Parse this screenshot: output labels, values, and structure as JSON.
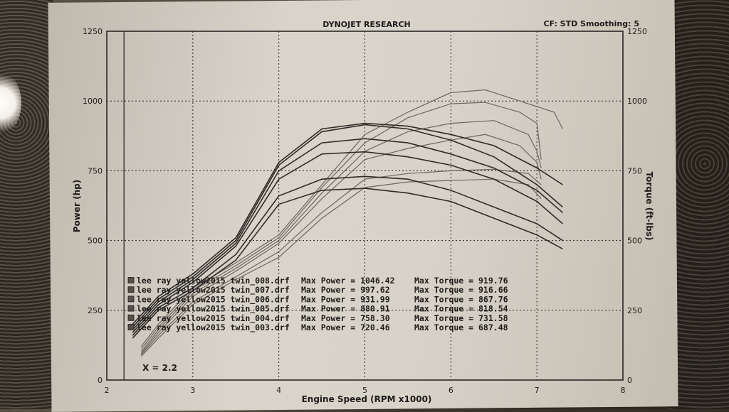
{
  "chart_data": {
    "type": "line",
    "title": "DYNOJET RESEARCH",
    "info": "CF: STD  Smoothing: 5",
    "xlabel": "Engine Speed (RPM x1000)",
    "ylabel_left": "Power (hp)",
    "ylabel_right": "Torque (ft-lbs)",
    "xlim": [
      2,
      8
    ],
    "ylim": [
      0,
      1250
    ],
    "x_ticks": [
      "2",
      "3",
      "4",
      "5",
      "6",
      "7",
      "8"
    ],
    "y_ticks_left": [
      "0",
      "250",
      "500",
      "750",
      "1000",
      "1250"
    ],
    "y_ticks_right": [
      "0",
      "250",
      "500",
      "750",
      "1000",
      "1250"
    ],
    "grid": true,
    "annotation": "X = 2.2",
    "legend": [
      {
        "name": "lee ray yellow2015 twin_008.drf",
        "power_label": "Max Power = 1046.42",
        "torque_label": "Max Torque = 919.76"
      },
      {
        "name": "lee ray yellow2015 twin_007.drf",
        "power_label": "Max Power = 997.62",
        "torque_label": "Max Torque = 916.66"
      },
      {
        "name": "lee ray yellow2015 twin_006.drf",
        "power_label": "Max Power = 931.99",
        "torque_label": "Max Torque = 867.76"
      },
      {
        "name": "lee ray yellow2015 twin_005.drf",
        "power_label": "Max Power = 880.91",
        "torque_label": "Max Torque = 818.54"
      },
      {
        "name": "lee ray yellow2015 twin_004.drf",
        "power_label": "Max Power = 758.30",
        "torque_label": "Max Torque = 731.58"
      },
      {
        "name": "lee ray yellow2015 twin_003.drf",
        "power_label": "Max Power = 720.46",
        "torque_label": "Max Torque = 687.48"
      }
    ],
    "series": [
      {
        "name": "twin_008 power",
        "kind": "power",
        "x": [
          2.4,
          2.6,
          3.0,
          3.5,
          4.0,
          4.5,
          5.0,
          5.5,
          6.0,
          6.4,
          6.8,
          7.0,
          7.2,
          7.3
        ],
        "y": [
          120,
          200,
          330,
          420,
          520,
          700,
          880,
          960,
          1030,
          1040,
          1000,
          980,
          960,
          900
        ]
      },
      {
        "name": "twin_007 power",
        "kind": "power",
        "x": [
          2.4,
          2.6,
          3.0,
          3.5,
          4.0,
          4.5,
          5.0,
          5.5,
          6.0,
          6.4,
          6.8,
          7.0,
          7.05
        ],
        "y": [
          110,
          190,
          320,
          410,
          510,
          690,
          850,
          940,
          990,
          995,
          960,
          920,
          790
        ]
      },
      {
        "name": "twin_006 power",
        "kind": "power",
        "x": [
          2.4,
          2.6,
          3.0,
          3.5,
          4.0,
          4.5,
          5.0,
          5.5,
          6.0,
          6.5,
          6.9,
          7.0,
          7.05
        ],
        "y": [
          100,
          180,
          310,
          400,
          500,
          670,
          820,
          890,
          920,
          930,
          880,
          820,
          760
        ]
      },
      {
        "name": "twin_005 power",
        "kind": "power",
        "x": [
          2.4,
          2.6,
          3.0,
          3.5,
          4.0,
          4.5,
          5.0,
          5.5,
          6.0,
          6.4,
          6.8,
          7.0,
          7.05
        ],
        "y": [
          95,
          170,
          300,
          390,
          490,
          650,
          790,
          830,
          860,
          880,
          840,
          780,
          720
        ]
      },
      {
        "name": "twin_004 power",
        "kind": "power",
        "x": [
          2.4,
          2.6,
          3.0,
          3.5,
          4.0,
          4.5,
          5.0,
          5.5,
          6.0,
          6.5,
          6.9,
          7.05
        ],
        "y": [
          90,
          160,
          280,
          370,
          460,
          600,
          720,
          740,
          750,
          755,
          740,
          700
        ]
      },
      {
        "name": "twin_003 power",
        "kind": "power",
        "x": [
          2.4,
          2.6,
          3.0,
          3.5,
          4.0,
          4.5,
          5.0,
          5.5,
          6.0,
          6.5,
          6.9,
          7.05
        ],
        "y": [
          85,
          150,
          270,
          360,
          440,
          580,
          690,
          710,
          715,
          720,
          700,
          650
        ]
      },
      {
        "name": "twin_008 torque",
        "kind": "torque",
        "x": [
          2.3,
          2.6,
          3.0,
          3.5,
          4.0,
          4.5,
          5.0,
          5.5,
          6.0,
          6.5,
          7.0,
          7.3
        ],
        "y": [
          200,
          300,
          380,
          510,
          780,
          900,
          920,
          910,
          880,
          840,
          760,
          700
        ]
      },
      {
        "name": "twin_007 torque",
        "kind": "torque",
        "x": [
          2.3,
          2.6,
          3.0,
          3.5,
          4.0,
          4.5,
          5.0,
          5.5,
          6.0,
          6.5,
          7.0,
          7.3
        ],
        "y": [
          190,
          290,
          370,
          500,
          770,
          890,
          915,
          900,
          860,
          800,
          700,
          620
        ]
      },
      {
        "name": "twin_006 torque",
        "kind": "torque",
        "x": [
          2.3,
          2.6,
          3.0,
          3.5,
          4.0,
          4.5,
          5.0,
          5.5,
          6.0,
          6.5,
          7.0,
          7.3
        ],
        "y": [
          180,
          280,
          360,
          490,
          750,
          850,
          865,
          850,
          810,
          760,
          680,
          600
        ]
      },
      {
        "name": "twin_005 torque",
        "kind": "torque",
        "x": [
          2.3,
          2.6,
          3.0,
          3.5,
          4.0,
          4.5,
          5.0,
          5.5,
          6.0,
          6.5,
          7.0,
          7.3
        ],
        "y": [
          170,
          270,
          350,
          480,
          720,
          810,
          818,
          800,
          770,
          720,
          640,
          560
        ]
      },
      {
        "name": "twin_004 torque",
        "kind": "torque",
        "x": [
          2.3,
          2.6,
          3.0,
          3.5,
          4.0,
          4.5,
          5.0,
          5.5,
          6.0,
          6.5,
          7.0,
          7.3
        ],
        "y": [
          160,
          260,
          330,
          450,
          660,
          720,
          730,
          720,
          680,
          620,
          560,
          500
        ]
      },
      {
        "name": "twin_003 torque",
        "kind": "torque",
        "x": [
          2.3,
          2.6,
          3.0,
          3.5,
          4.0,
          4.5,
          5.0,
          5.5,
          6.0,
          6.5,
          7.0,
          7.3
        ],
        "y": [
          150,
          250,
          320,
          430,
          630,
          680,
          687,
          670,
          640,
          580,
          520,
          470
        ]
      }
    ]
  }
}
